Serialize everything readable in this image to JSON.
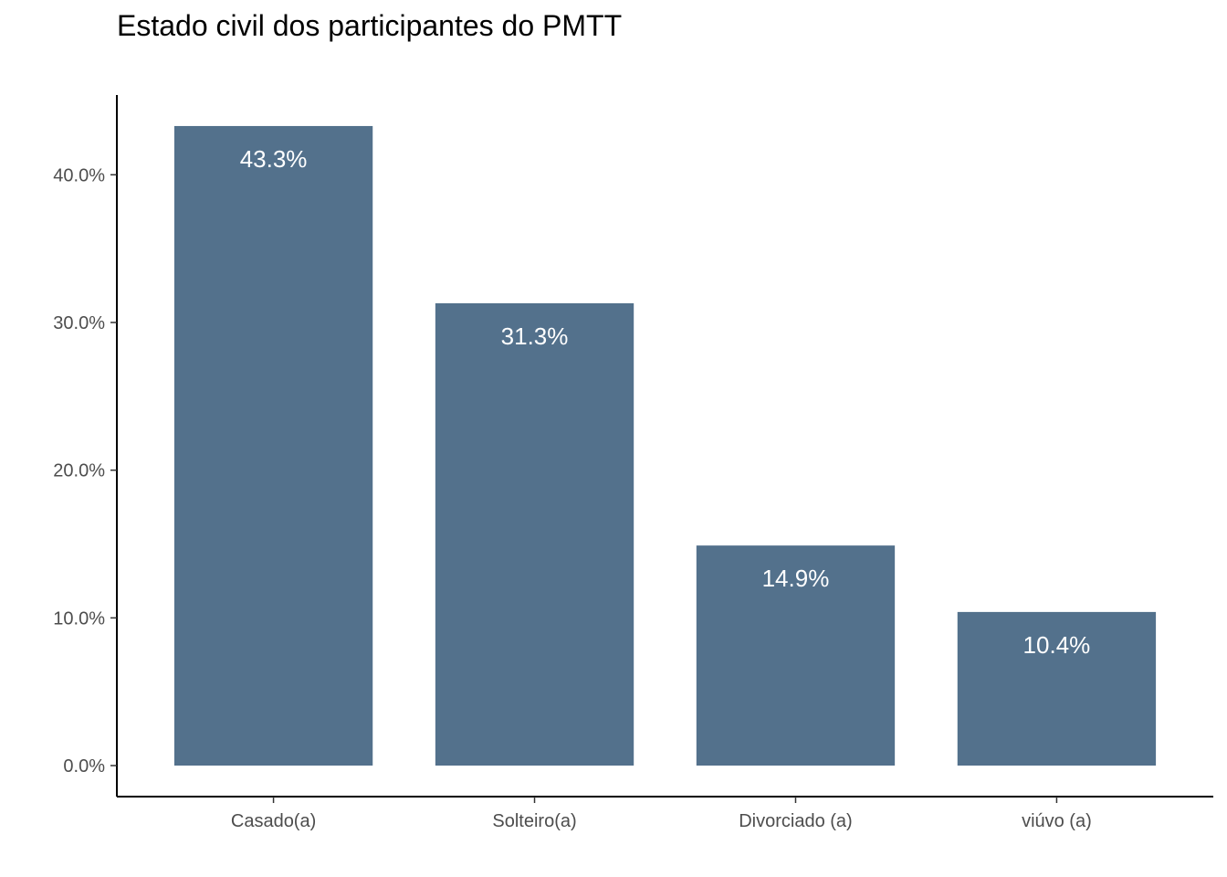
{
  "chart_data": {
    "type": "bar",
    "title": "Estado civil dos participantes do PMTT",
    "xlabel": "",
    "ylabel": "",
    "categories": [
      "Casado(a)",
      "Solteiro(a)",
      "Divorciado (a)",
      "viúvo (a)"
    ],
    "values": [
      43.3,
      31.3,
      14.9,
      10.4
    ],
    "value_labels": [
      "43.3%",
      "31.3%",
      "14.9%",
      "10.4%"
    ],
    "yticks": [
      0,
      10,
      20,
      30,
      40
    ],
    "ytick_labels": [
      "0.0%",
      "10.0%",
      "20.0%",
      "30.0%",
      "40.0%"
    ],
    "ylim": [
      -2.1,
      45.4
    ],
    "grid": false,
    "legend": "none",
    "bar_color": "#53718C",
    "axis_color": "#000000",
    "tick_label_color": "#4d4d4d",
    "value_label_color": "#ffffff"
  }
}
